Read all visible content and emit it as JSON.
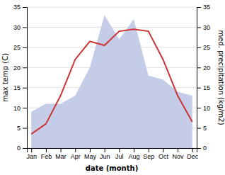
{
  "chart_data": {
    "type": "line",
    "categories": [
      "Jan",
      "Feb",
      "Mar",
      "Apr",
      "May",
      "Jun",
      "Jul",
      "Aug",
      "Sep",
      "Oct",
      "Nov",
      "Dec"
    ],
    "xlabel": "date (month)",
    "ylabel": "max temp (C)",
    "y2label": "med. precipitation (kg/m2)",
    "ylim": [
      0,
      35
    ],
    "yticks": [
      0,
      5,
      10,
      15,
      20,
      25,
      30,
      35
    ],
    "y2lim": [
      0,
      35
    ],
    "y2ticks": [
      0,
      5,
      10,
      15,
      20,
      25,
      30,
      35
    ],
    "grid": true,
    "series": [
      {
        "type": "area",
        "axis": "y2",
        "color": "#c5cce8",
        "values": [
          9,
          11,
          11,
          13,
          20,
          33,
          27,
          32,
          18,
          17,
          14,
          13
        ]
      },
      {
        "type": "line",
        "color": "#cc3333",
        "values": [
          3.5,
          6.0,
          13.0,
          22.0,
          26.5,
          25.5,
          29.0,
          29.5,
          29.0,
          22.0,
          13.0,
          6.5
        ]
      }
    ]
  }
}
